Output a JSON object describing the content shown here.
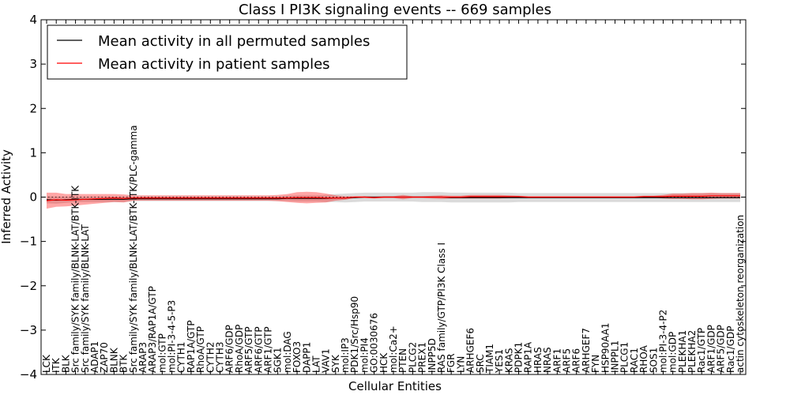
{
  "chart_data": {
    "type": "line",
    "title": "Class I PI3K signaling events -- 669 samples",
    "xlabel": "Cellular Entities",
    "ylabel": "Inferred Activity",
    "ylim": [
      -4,
      4
    ],
    "yticks": [
      -4,
      -3,
      -2,
      -1,
      0,
      1,
      2,
      3,
      4
    ],
    "ytick_labels": [
      "−4",
      "−3",
      "−2",
      "−1",
      "0",
      "1",
      "2",
      "3",
      "4"
    ],
    "legend_position": "top-left",
    "categories": [
      "LCK",
      "ITK",
      "BLK",
      "Src family/SYK family/BLNK-LAT/BTK-ITK",
      "Src family/SYK family/BLNK-LAT",
      "ADAP1",
      "ZAP70",
      "BLNK",
      "BTK",
      "Src family/SYK family/BLNK-LAT/BTK-ITK/PLC-gamma",
      "ARAP3",
      "ARAP3/RAP1A/GTP",
      "mol:GTP",
      "mol:PI-3-4-5-P3",
      "CYTH1",
      "RAP1A/GTP",
      "RhoA/GTP",
      "CYTH2",
      "CYTH3",
      "ARF6/GDP",
      "RhoA/GDP",
      "ARF5/GTP",
      "ARF6/GTP",
      "ARF1/GTP",
      "SGK1",
      "mol:DAG",
      "FOXO3",
      "DAPP1",
      "LAT",
      "VAV1",
      "SYK",
      "mol:IP3",
      "PDK1/Src/Hsp90",
      "mol:PI4",
      "GO:0030676",
      "HCK",
      "mol:Ca2+",
      "PTEN",
      "PLCG2",
      "PREX1",
      "INPP5D",
      "RAS family/GTP/PI3K Class I",
      "FGR",
      "LYN",
      "ARHGEF6",
      "SRC",
      "TIAM1",
      "YES1",
      "KRAS",
      "PDPK1",
      "RAP1A",
      "HRAS",
      "NRAS",
      "ARF1",
      "ARF5",
      "ARF6",
      "ARHGEF7",
      "FYN",
      "HSP90AA1",
      "INPPL1",
      "PLCG1",
      "RAC1",
      "RHOA",
      "SOS1",
      "mol:PI-3-4-P2",
      "mol:GDP",
      "PLEKHA1",
      "PLEKHA2",
      "Rac1/GTP",
      "ARF1/GDP",
      "ARF5/GDP",
      "Rac1/GDP",
      "actin cytoskeleton reorganization"
    ],
    "series": [
      {
        "name": "Mean activity in all permuted samples",
        "color": "#000000",
        "values": [
          -0.06,
          -0.07,
          -0.06,
          -0.05,
          -0.05,
          -0.05,
          -0.05,
          -0.05,
          -0.05,
          -0.04,
          -0.04,
          -0.04,
          -0.04,
          -0.04,
          -0.04,
          -0.04,
          -0.04,
          -0.04,
          -0.04,
          -0.04,
          -0.04,
          -0.04,
          -0.04,
          -0.04,
          -0.04,
          -0.03,
          -0.03,
          -0.03,
          -0.03,
          -0.03,
          -0.02,
          -0.02,
          -0.01,
          0.0,
          0.0,
          0.0,
          0.0,
          0.0,
          0.0,
          0.0,
          0.0,
          0.0,
          -0.01,
          -0.01,
          -0.01,
          -0.01,
          -0.01,
          -0.01,
          -0.01,
          -0.01,
          -0.01,
          -0.01,
          -0.01,
          -0.01,
          -0.01,
          -0.01,
          -0.01,
          -0.01,
          -0.01,
          -0.01,
          -0.01,
          -0.01,
          -0.01,
          -0.01,
          -0.01,
          -0.01,
          -0.01,
          -0.01,
          -0.01,
          -0.01,
          -0.01,
          -0.01,
          -0.01
        ],
        "band": [
          0.08,
          0.08,
          0.07,
          0.06,
          0.06,
          0.06,
          0.06,
          0.06,
          0.06,
          0.05,
          0.05,
          0.05,
          0.05,
          0.05,
          0.05,
          0.05,
          0.05,
          0.05,
          0.05,
          0.05,
          0.05,
          0.05,
          0.05,
          0.05,
          0.05,
          0.06,
          0.07,
          0.07,
          0.07,
          0.08,
          0.09,
          0.1,
          0.1,
          0.1,
          0.1,
          0.1,
          0.1,
          0.1,
          0.1,
          0.11,
          0.11,
          0.11,
          0.11,
          0.11,
          0.11,
          0.11,
          0.11,
          0.11,
          0.11,
          0.1,
          0.1,
          0.1,
          0.1,
          0.1,
          0.1,
          0.1,
          0.1,
          0.1,
          0.1,
          0.1,
          0.1,
          0.1,
          0.1,
          0.1,
          0.1,
          0.1,
          0.1,
          0.1,
          0.1,
          0.1,
          0.1,
          0.1,
          0.1
        ]
      },
      {
        "name": "Mean activity in patient samples",
        "color": "#ff0000",
        "values": [
          -0.08,
          -0.06,
          -0.07,
          -0.06,
          -0.05,
          -0.04,
          -0.03,
          -0.02,
          -0.03,
          -0.02,
          -0.02,
          -0.02,
          -0.02,
          -0.02,
          -0.02,
          -0.02,
          -0.02,
          -0.02,
          -0.02,
          -0.02,
          -0.02,
          -0.02,
          -0.02,
          -0.02,
          -0.02,
          -0.02,
          -0.01,
          -0.01,
          -0.01,
          -0.02,
          -0.02,
          -0.02,
          0.0,
          0.0,
          -0.01,
          0.0,
          0.0,
          0.0,
          0.0,
          0.0,
          0.0,
          0.0,
          0.0,
          0.0,
          0.01,
          0.01,
          0.01,
          0.01,
          0.01,
          0.01,
          0.0,
          0.0,
          0.0,
          0.0,
          0.0,
          0.0,
          0.0,
          0.0,
          0.0,
          0.0,
          0.0,
          0.0,
          0.01,
          0.01,
          0.01,
          0.02,
          0.02,
          0.02,
          0.02,
          0.03,
          0.03,
          0.03,
          0.03
        ],
        "band": [
          0.18,
          0.16,
          0.14,
          0.13,
          0.12,
          0.11,
          0.1,
          0.09,
          0.09,
          0.06,
          0.06,
          0.06,
          0.06,
          0.06,
          0.06,
          0.06,
          0.06,
          0.06,
          0.06,
          0.06,
          0.06,
          0.06,
          0.06,
          0.06,
          0.07,
          0.09,
          0.12,
          0.13,
          0.12,
          0.1,
          0.06,
          0.04,
          0.02,
          0.02,
          0.02,
          0.02,
          0.02,
          0.05,
          0.02,
          0.02,
          0.03,
          0.04,
          0.03,
          0.03,
          0.04,
          0.04,
          0.04,
          0.04,
          0.03,
          0.02,
          0.02,
          0.02,
          0.02,
          0.02,
          0.02,
          0.02,
          0.02,
          0.02,
          0.02,
          0.02,
          0.02,
          0.02,
          0.02,
          0.02,
          0.04,
          0.06,
          0.06,
          0.07,
          0.07,
          0.07,
          0.06,
          0.06,
          0.06
        ]
      }
    ]
  }
}
